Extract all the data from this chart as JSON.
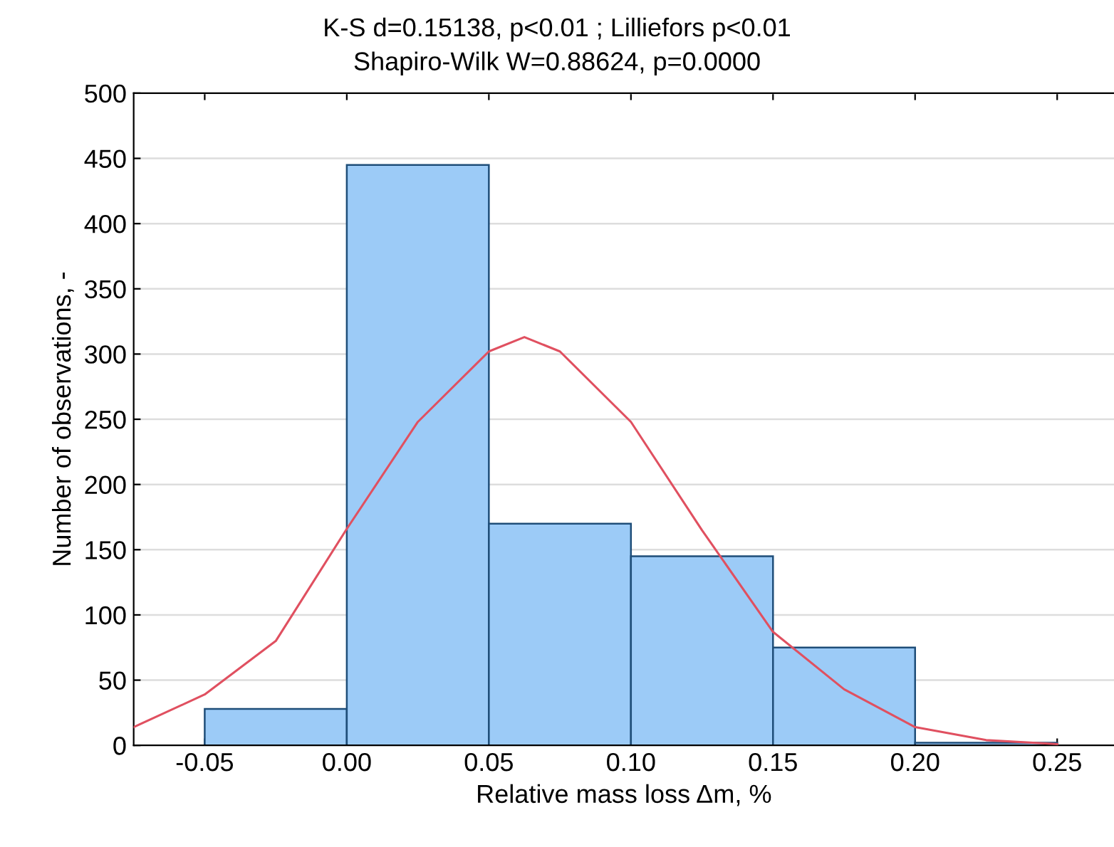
{
  "chart_data": {
    "type": "histogram",
    "title": "K-S d=0.15138, p<0.01 ; Lilliefors p<0.01",
    "subtitle": "Shapiro-Wilk W=0.88624, p=0.0000",
    "xlabel": "Relative mass loss Δm, %",
    "ylabel": "Number of observations, -",
    "bins": [
      -0.05,
      0.0,
      0.05,
      0.1,
      0.15,
      0.2,
      0.25
    ],
    "values": [
      28,
      445,
      170,
      145,
      75,
      2
    ],
    "color": "#9ccbf7",
    "series": [
      {
        "type": "line",
        "color": "#e05060",
        "x": [
          -0.075,
          -0.05,
          -0.025,
          0.0,
          0.025,
          0.05,
          0.0625,
          0.075,
          0.1,
          0.125,
          0.15,
          0.175,
          0.2,
          0.225,
          0.25
        ],
        "values": [
          14,
          39,
          80,
          166,
          248,
          302,
          313,
          302,
          248,
          165,
          87,
          43,
          14,
          4,
          1
        ]
      }
    ],
    "xlim": [
      -0.075,
      0.27
    ],
    "xticks": [
      {
        "value": -0.05,
        "label": "-0.05"
      },
      {
        "value": 0.0,
        "label": "0.00"
      },
      {
        "value": 0.05,
        "label": "0.05"
      },
      {
        "value": 0.1,
        "label": "0.10"
      },
      {
        "value": 0.15,
        "label": "0.15"
      },
      {
        "value": 0.2,
        "label": "0.20"
      },
      {
        "value": 0.25,
        "label": "0.25"
      }
    ],
    "ylim": [
      0,
      500
    ],
    "yticks": [
      0,
      50,
      100,
      150,
      200,
      250,
      300,
      350,
      400,
      450,
      500
    ],
    "grid": "y"
  }
}
